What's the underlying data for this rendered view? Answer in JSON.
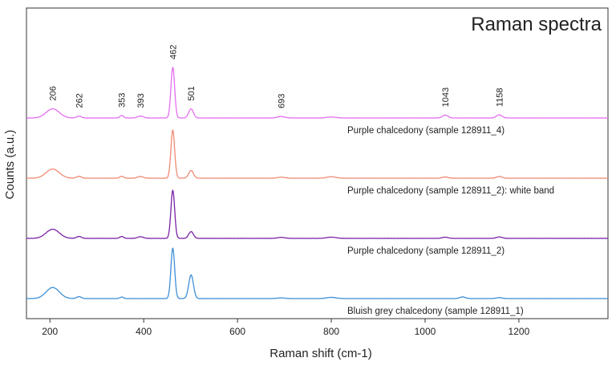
{
  "chart_data": {
    "type": "line",
    "title": "Raman spectra",
    "xlabel": "Raman shift (cm-1)",
    "ylabel": "Counts (a.u.)",
    "xlim": [
      150,
      1390
    ],
    "xticks": [
      200,
      400,
      600,
      800,
      1000,
      1200
    ],
    "grid": false,
    "peak_labels": [
      "206",
      "262",
      "353",
      "393",
      "462",
      "501",
      "693",
      "1043",
      "1158"
    ],
    "series": [
      {
        "name": "Purple chalcedony (sample 128911_4)",
        "color": "#e36ff0",
        "offset": 0.75,
        "peaks": [
          [
            206,
            0.038,
            14
          ],
          [
            262,
            0.008,
            5
          ],
          [
            353,
            0.01,
            4
          ],
          [
            393,
            0.008,
            6
          ],
          [
            462,
            0.21,
            4
          ],
          [
            501,
            0.038,
            5
          ],
          [
            693,
            0.006,
            8
          ],
          [
            800,
            0.004,
            10
          ],
          [
            1043,
            0.012,
            6
          ],
          [
            1158,
            0.013,
            6
          ]
        ]
      },
      {
        "name": "Purple chalcedony (sample 128911_2): white band",
        "color": "#f08a72",
        "offset": 0.5,
        "peaks": [
          [
            206,
            0.038,
            14
          ],
          [
            262,
            0.008,
            5
          ],
          [
            353,
            0.008,
            4
          ],
          [
            393,
            0.007,
            6
          ],
          [
            462,
            0.2,
            4
          ],
          [
            501,
            0.032,
            5
          ],
          [
            693,
            0.004,
            8
          ],
          [
            800,
            0.006,
            10
          ],
          [
            1043,
            0.005,
            6
          ],
          [
            1158,
            0.007,
            6
          ]
        ]
      },
      {
        "name": "Purple chalcedony (sample 128911_2)",
        "color": "#7a22a6",
        "offset": 0.25,
        "peaks": [
          [
            206,
            0.038,
            14
          ],
          [
            262,
            0.008,
            5
          ],
          [
            353,
            0.008,
            4
          ],
          [
            393,
            0.007,
            6
          ],
          [
            462,
            0.2,
            4
          ],
          [
            501,
            0.028,
            5
          ],
          [
            693,
            0.004,
            8
          ],
          [
            800,
            0.005,
            10
          ],
          [
            1043,
            0.005,
            6
          ],
          [
            1158,
            0.006,
            6
          ]
        ]
      },
      {
        "name": "Bluish grey chalcedony (sample 128911_1)",
        "color": "#3f8fd6",
        "offset": 0.0,
        "peaks": [
          [
            206,
            0.046,
            14
          ],
          [
            262,
            0.008,
            5
          ],
          [
            353,
            0.006,
            4
          ],
          [
            462,
            0.21,
            4
          ],
          [
            501,
            0.098,
            5
          ],
          [
            693,
            0.003,
            8
          ],
          [
            800,
            0.005,
            10
          ],
          [
            1080,
            0.007,
            6
          ],
          [
            1158,
            0.004,
            6
          ]
        ]
      }
    ]
  }
}
